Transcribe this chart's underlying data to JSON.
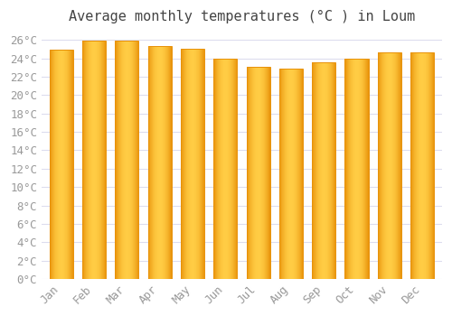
{
  "title": "Average monthly temperatures (°C ) in Loum",
  "months": [
    "Jan",
    "Feb",
    "Mar",
    "Apr",
    "May",
    "Jun",
    "Jul",
    "Aug",
    "Sep",
    "Oct",
    "Nov",
    "Dec"
  ],
  "values": [
    25.0,
    25.9,
    25.9,
    25.4,
    25.1,
    24.0,
    23.1,
    22.9,
    23.6,
    24.0,
    24.7,
    24.7
  ],
  "bar_color_center": "#FFCC44",
  "bar_color_edge": "#E8920A",
  "ylim": [
    0,
    27
  ],
  "ytick_step": 2,
  "background_color": "#FFFFFF",
  "plot_bg_color": "#FFFFFF",
  "grid_color": "#DDDDEE",
  "font_family": "monospace",
  "title_fontsize": 11,
  "tick_fontsize": 9,
  "tick_color": "#999999",
  "title_color": "#444444"
}
